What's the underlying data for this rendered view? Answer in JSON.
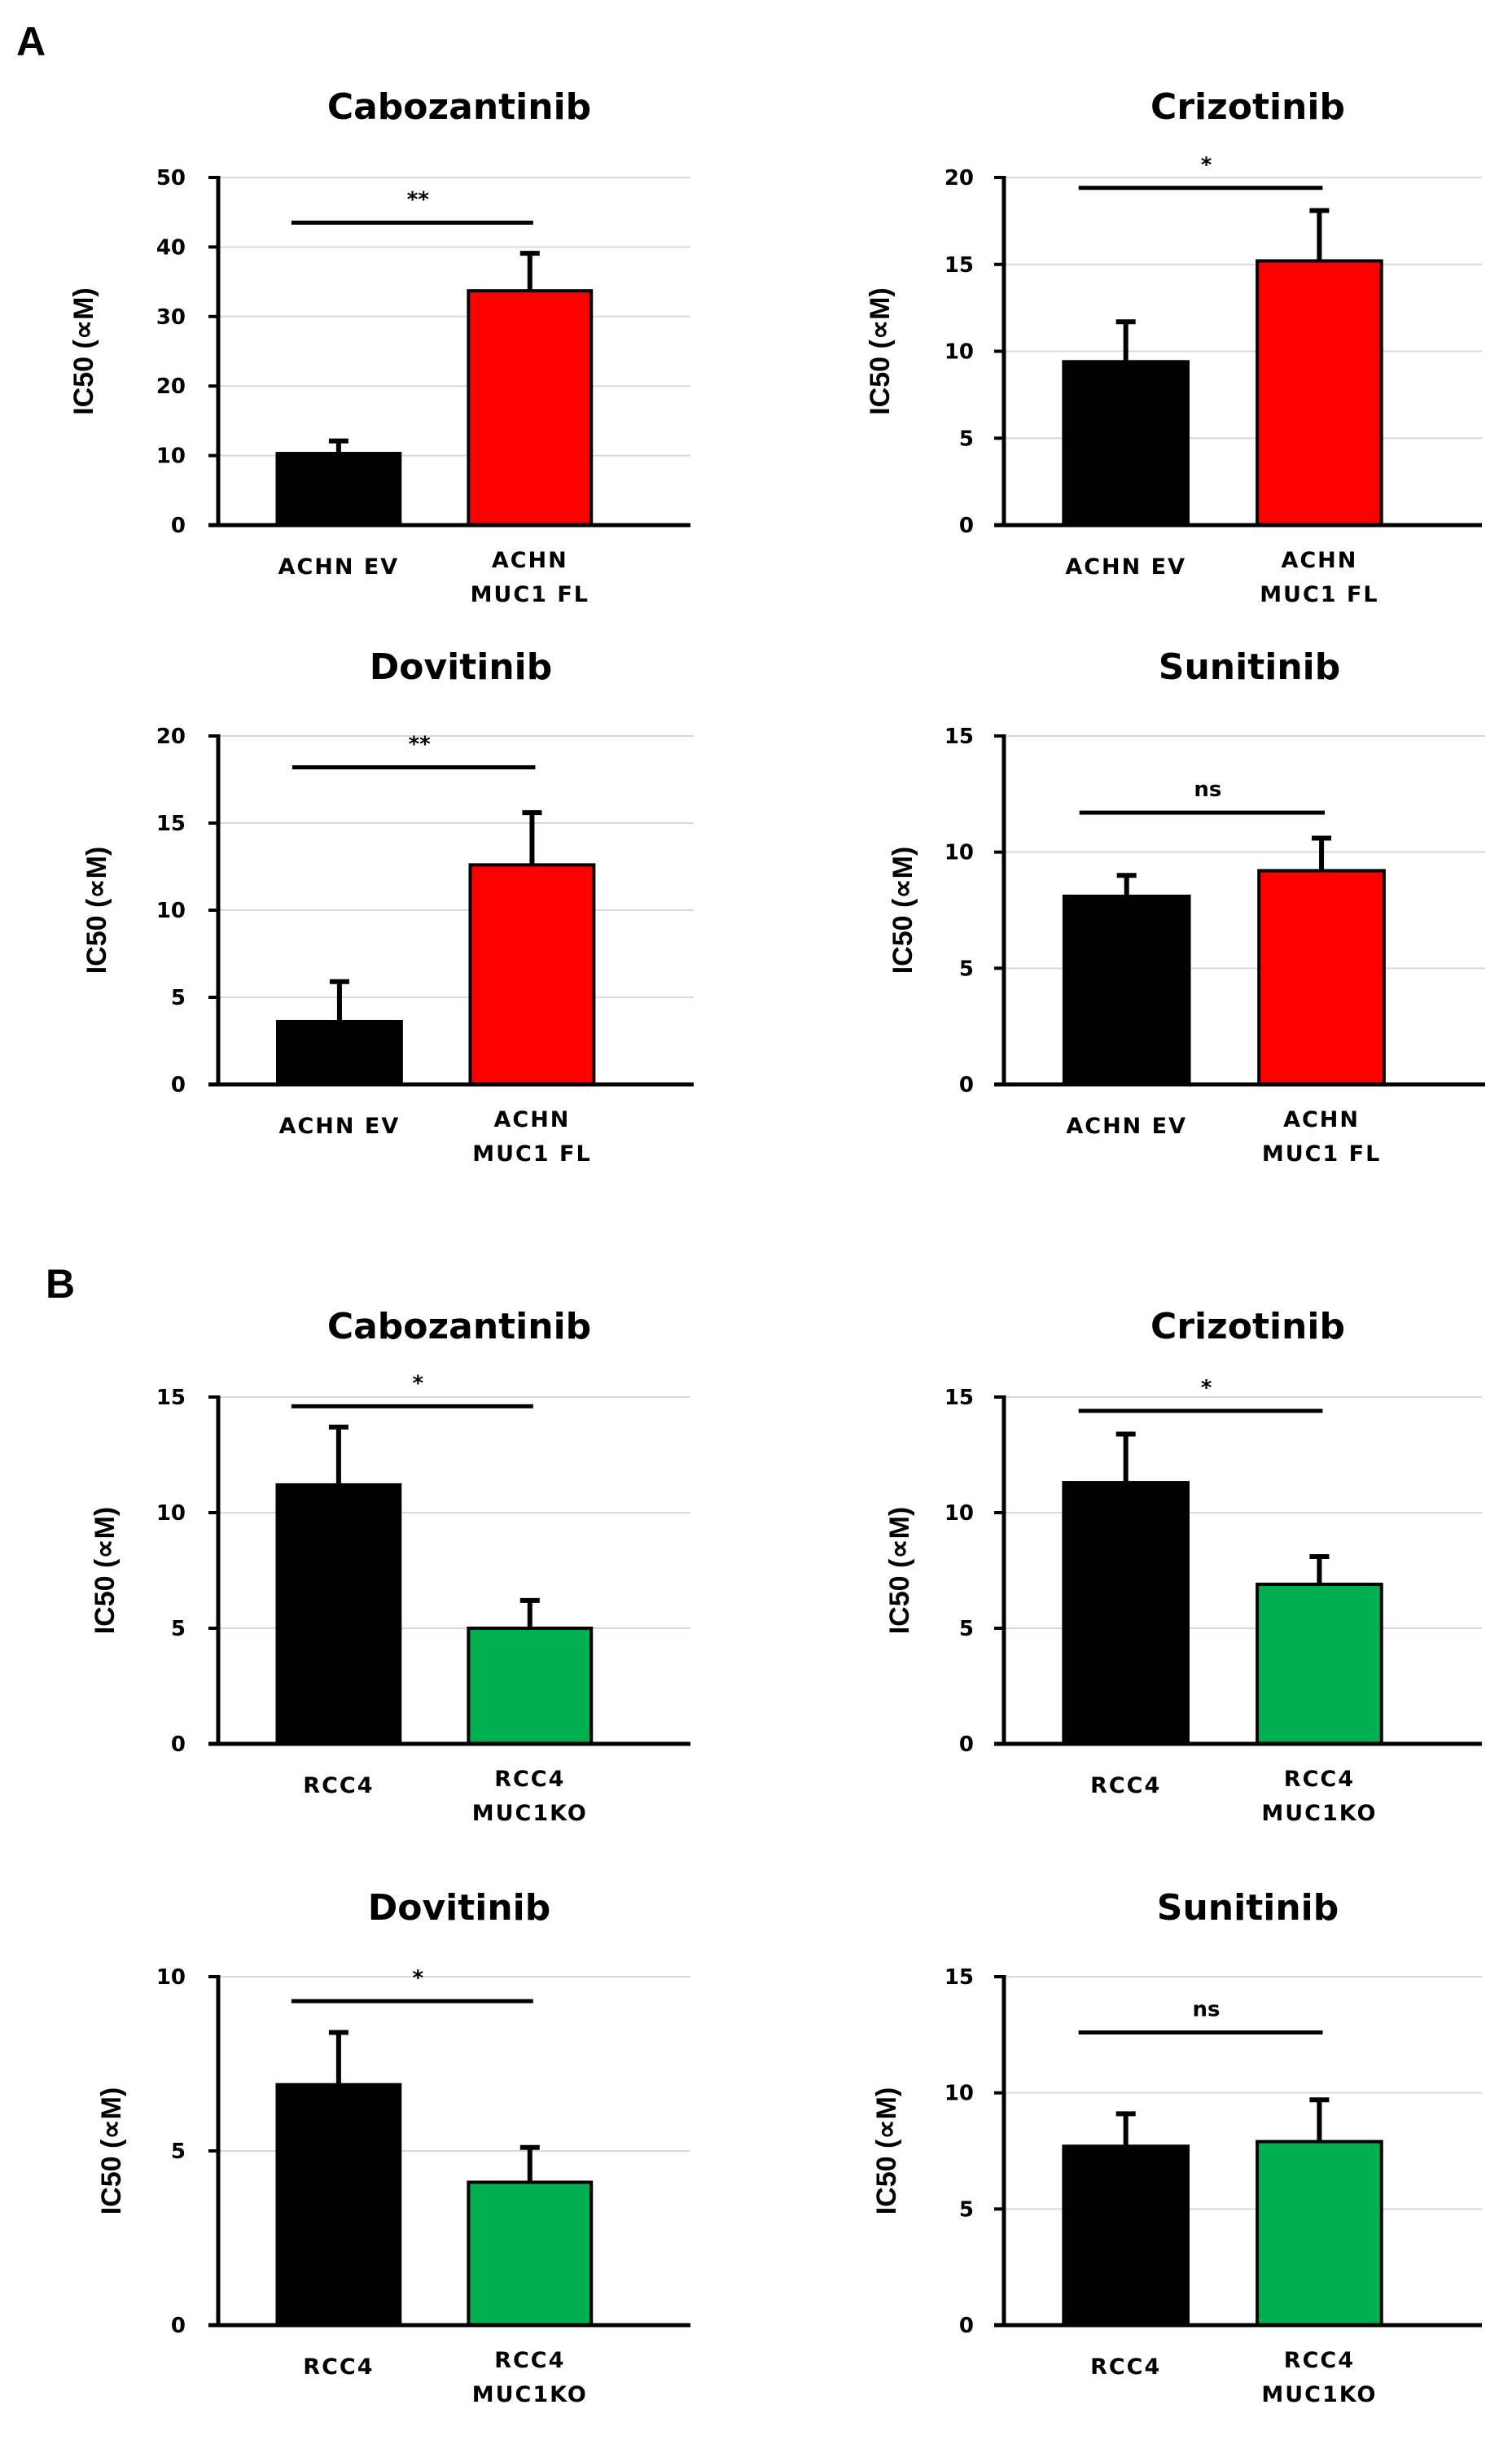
{
  "panels": [
    {
      "label": "A"
    },
    {
      "label": "B"
    }
  ],
  "chart_data": [
    {
      "type": "bar",
      "panel": "A",
      "title": "Cabozantinib",
      "xlabel": "",
      "ylabel": "IC50 (∝M)",
      "ylim": [
        0,
        50
      ],
      "yticks": [
        0,
        10,
        20,
        30,
        40,
        50
      ],
      "grid": true,
      "categories": [
        [
          "ACHN EV"
        ],
        [
          "ACHN",
          "MUC1 FL"
        ]
      ],
      "values": [
        10.3,
        33.7
      ],
      "errors": [
        1.8,
        5.4
      ],
      "colors": [
        "#000000",
        "#ff0000"
      ],
      "significance": "**",
      "sig_level": 43.5
    },
    {
      "type": "bar",
      "panel": "A",
      "title": "Crizotinib",
      "xlabel": "",
      "ylabel": "IC50 (∝M)",
      "ylim": [
        0,
        20
      ],
      "yticks": [
        0,
        5,
        10,
        15,
        20
      ],
      "grid": true,
      "categories": [
        [
          "ACHN EV"
        ],
        [
          "ACHN",
          "MUC1 FL"
        ]
      ],
      "values": [
        9.4,
        15.2
      ],
      "errors": [
        2.3,
        2.9
      ],
      "colors": [
        "#000000",
        "#ff0000"
      ],
      "significance": "*",
      "sig_level": 19.4
    },
    {
      "type": "bar",
      "panel": "A",
      "title": "Dovitinib",
      "xlabel": "",
      "ylabel": "IC50 (∝M)",
      "ylim": [
        0,
        20
      ],
      "yticks": [
        0,
        5,
        10,
        15,
        20
      ],
      "grid": true,
      "categories": [
        [
          "ACHN EV"
        ],
        [
          "ACHN",
          "MUC1 FL"
        ]
      ],
      "values": [
        3.6,
        12.6
      ],
      "errors": [
        2.3,
        3.0
      ],
      "colors": [
        "#000000",
        "#ff0000"
      ],
      "significance": "**",
      "sig_level": 18.2
    },
    {
      "type": "bar",
      "panel": "A",
      "title": "Sunitinib",
      "xlabel": "",
      "ylabel": "IC50 (∝M)",
      "ylim": [
        0,
        15
      ],
      "yticks": [
        0,
        5,
        10,
        15
      ],
      "grid": true,
      "categories": [
        [
          "ACHN EV"
        ],
        [
          "ACHN",
          "MUC1 FL"
        ]
      ],
      "values": [
        8.1,
        9.2
      ],
      "errors": [
        0.9,
        1.4
      ],
      "colors": [
        "#000000",
        "#ff0000"
      ],
      "significance": "ns",
      "sig_level": 11.7
    },
    {
      "type": "bar",
      "panel": "B",
      "title": "Cabozantinib",
      "xlabel": "",
      "ylabel": "IC50 (∝M)",
      "ylim": [
        0,
        15
      ],
      "yticks": [
        0,
        5,
        10,
        15
      ],
      "grid": true,
      "categories": [
        [
          "RCC4"
        ],
        [
          "RCC4",
          "MUC1KO"
        ]
      ],
      "values": [
        11.2,
        5.0
      ],
      "errors": [
        2.5,
        1.2
      ],
      "colors": [
        "#000000",
        "#00b050"
      ],
      "significance": "*",
      "sig_level": 14.6
    },
    {
      "type": "bar",
      "panel": "B",
      "title": "Crizotinib",
      "xlabel": "",
      "ylabel": "IC50 (∝M)",
      "ylim": [
        0,
        15
      ],
      "yticks": [
        0,
        5,
        10,
        15
      ],
      "grid": true,
      "categories": [
        [
          "RCC4"
        ],
        [
          "RCC4",
          "MUC1KO"
        ]
      ],
      "values": [
        11.3,
        6.9
      ],
      "errors": [
        2.1,
        1.2
      ],
      "colors": [
        "#000000",
        "#00b050"
      ],
      "significance": "*",
      "sig_level": 14.4
    },
    {
      "type": "bar",
      "panel": "B",
      "title": "Dovitinib",
      "xlabel": "",
      "ylabel": "IC50 (∝M)",
      "ylim": [
        0,
        10
      ],
      "yticks": [
        0,
        5,
        10
      ],
      "grid": true,
      "categories": [
        [
          "RCC4"
        ],
        [
          "RCC4",
          "MUC1KO"
        ]
      ],
      "values": [
        6.9,
        4.1
      ],
      "errors": [
        1.5,
        1.0
      ],
      "colors": [
        "#000000",
        "#00b050"
      ],
      "significance": "*",
      "sig_level": 9.3
    },
    {
      "type": "bar",
      "panel": "B",
      "title": "Sunitinib",
      "xlabel": "",
      "ylabel": "IC50 (∝M)",
      "ylim": [
        0,
        15
      ],
      "yticks": [
        0,
        5,
        10,
        15
      ],
      "grid": true,
      "categories": [
        [
          "RCC4"
        ],
        [
          "RCC4",
          "MUC1KO"
        ]
      ],
      "values": [
        7.7,
        7.9
      ],
      "errors": [
        1.4,
        1.8
      ],
      "colors": [
        "#000000",
        "#00b050"
      ],
      "significance": "ns",
      "sig_level": 12.6
    }
  ]
}
